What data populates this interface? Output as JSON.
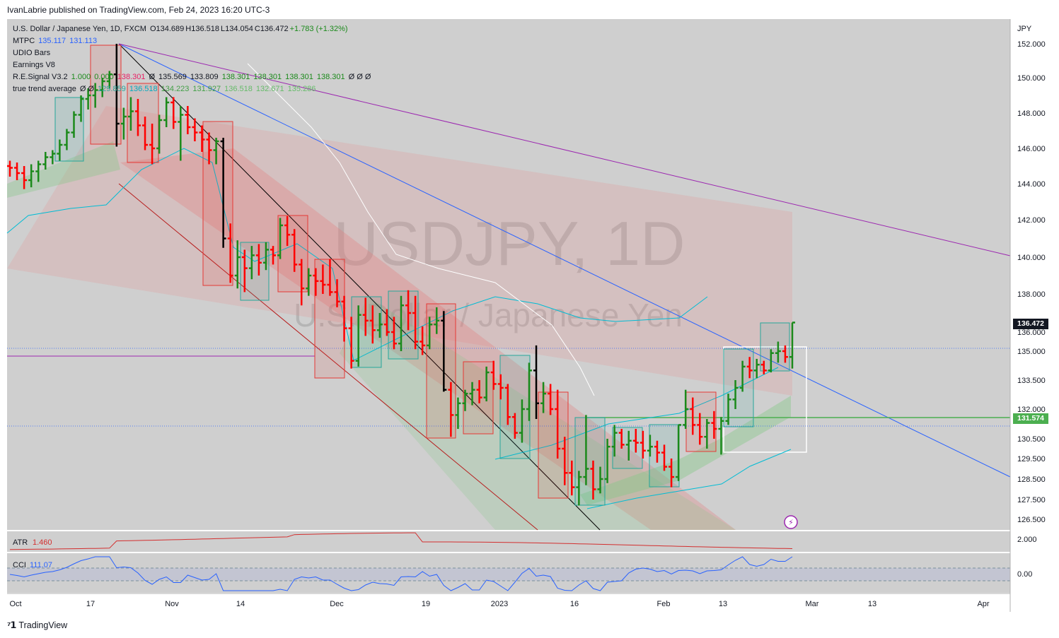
{
  "header": {
    "published": "IvanLabrie published on TradingView.com, Feb 24, 2023 16:20 UTC-3"
  },
  "watermark": {
    "symbol": "USDJPY, 1D",
    "name": "U.S. Dollar / Japanese Yen"
  },
  "legend": {
    "line1": {
      "title": "U.S. Dollar / Japanese Yen, 1D, FXCM",
      "o": "O134.689",
      "h": "H136.518",
      "l": "L134.054",
      "c": "C136.472",
      "chg": "+1.783 (+1.32%)"
    },
    "line2": {
      "name": "MTPC",
      "v1": "135.117",
      "v2": "131.113"
    },
    "line3": {
      "name": "UDIO Bars"
    },
    "line4": {
      "name": "Earnings V8"
    },
    "line5": {
      "name": "R.E.Signal V3.2",
      "v1": "1.000",
      "v2": "0.000",
      "v3": "138.301",
      "v4": "Ø",
      "v5": "135.569",
      "v6": "133.809",
      "v7": "138.301",
      "v8": "138.301",
      "v9": "138.301",
      "v10": "138.301",
      "v11": "Ø Ø Ø"
    },
    "line6": {
      "name": "true trend average",
      "v1": "Ø Ø",
      "v2": "129.859",
      "v3": "136.518",
      "v4": "134.223",
      "v5": "131.927",
      "v6": "136.518",
      "v7": "132.671",
      "v8": "135.286"
    }
  },
  "price_axis": {
    "currency": "JPY",
    "last_price": "136.472",
    "hline_price": "131.574",
    "colors": {
      "last": "#131722",
      "hline": "#4caf50"
    }
  },
  "atr": {
    "label": "ATR",
    "value": "1.460",
    "axis_label": "2.000"
  },
  "cci": {
    "label": "CCI",
    "value": "111.07",
    "axis_label": "0.00"
  },
  "footer": {
    "brand": "TradingView"
  },
  "chart_data": {
    "type": "candlestick",
    "symbol": "USDJPY",
    "interval": "1D",
    "ylim": [
      125.6,
      153.0
    ],
    "y_ticks": [
      126.5,
      127.5,
      128.5,
      129.5,
      130.5,
      132.0,
      133.5,
      135.0,
      136.0,
      138.0,
      140.0,
      142.0,
      144.0,
      146.0,
      148.0,
      150.0,
      152.0
    ],
    "y_tick_labels": [
      "126.500",
      "127.500",
      "128.500",
      "129.500",
      "130.500",
      "132.000",
      "133.500",
      "135.000",
      "136.000",
      "138.000",
      "140.000",
      "142.000",
      "144.000",
      "146.000",
      "148.000",
      "150.000",
      "152.000"
    ],
    "x_tick_labels": [
      "Oct",
      "17",
      "Nov",
      "14",
      "Dec",
      "19",
      "2023",
      "16",
      "Feb",
      "13",
      "Mar",
      "13",
      "Apr"
    ],
    "colors": {
      "up": "#1b8a1b",
      "down": "#ff0000",
      "neutral": "#000000",
      "bands": "#f08080",
      "channel_green": "#4caf50"
    },
    "bars": [
      {
        "o": 145.0,
        "h": 145.3,
        "l": 144.4,
        "c": 144.9
      },
      {
        "o": 144.9,
        "h": 145.2,
        "l": 144.2,
        "c": 144.6
      },
      {
        "o": 144.6,
        "h": 145.0,
        "l": 143.7,
        "c": 144.2
      },
      {
        "o": 144.2,
        "h": 145.1,
        "l": 143.8,
        "c": 144.7
      },
      {
        "o": 144.7,
        "h": 145.3,
        "l": 144.1,
        "c": 145.1
      },
      {
        "o": 145.1,
        "h": 145.8,
        "l": 144.8,
        "c": 145.5
      },
      {
        "o": 145.5,
        "h": 145.9,
        "l": 145.1,
        "c": 145.7
      },
      {
        "o": 145.7,
        "h": 146.5,
        "l": 145.3,
        "c": 146.2
      },
      {
        "o": 146.2,
        "h": 147.1,
        "l": 145.9,
        "c": 146.9
      },
      {
        "o": 146.9,
        "h": 148.1,
        "l": 146.6,
        "c": 147.9
      },
      {
        "o": 147.9,
        "h": 149.0,
        "l": 147.5,
        "c": 148.8
      },
      {
        "o": 148.8,
        "h": 149.4,
        "l": 148.2,
        "c": 149.0
      },
      {
        "o": 149.0,
        "h": 149.7,
        "l": 148.3,
        "c": 149.3
      },
      {
        "o": 149.3,
        "h": 150.0,
        "l": 148.9,
        "c": 149.8
      },
      {
        "o": 149.8,
        "h": 150.4,
        "l": 149.4,
        "c": 150.2
      },
      {
        "o": 150.2,
        "h": 152.0,
        "l": 146.1,
        "c": 147.4
      },
      {
        "o": 147.4,
        "h": 148.3,
        "l": 146.5,
        "c": 147.8
      },
      {
        "o": 147.8,
        "h": 148.9,
        "l": 147.0,
        "c": 148.1
      },
      {
        "o": 148.1,
        "h": 148.8,
        "l": 146.7,
        "c": 147.3
      },
      {
        "o": 147.3,
        "h": 147.8,
        "l": 145.9,
        "c": 146.2
      },
      {
        "o": 146.2,
        "h": 147.4,
        "l": 145.1,
        "c": 146.0
      },
      {
        "o": 146.0,
        "h": 147.9,
        "l": 145.7,
        "c": 147.6
      },
      {
        "o": 147.6,
        "h": 148.9,
        "l": 147.2,
        "c": 148.6
      },
      {
        "o": 148.6,
        "h": 148.9,
        "l": 147.1,
        "c": 147.5
      },
      {
        "o": 147.5,
        "h": 148.4,
        "l": 145.3,
        "c": 147.9
      },
      {
        "o": 147.9,
        "h": 148.4,
        "l": 146.8,
        "c": 147.2
      },
      {
        "o": 147.2,
        "h": 147.7,
        "l": 146.4,
        "c": 146.9
      },
      {
        "o": 146.9,
        "h": 147.3,
        "l": 145.8,
        "c": 146.5
      },
      {
        "o": 146.5,
        "h": 146.9,
        "l": 145.1,
        "c": 145.9
      },
      {
        "o": 145.9,
        "h": 146.6,
        "l": 145.1,
        "c": 146.4
      },
      {
        "o": 146.4,
        "h": 146.6,
        "l": 140.5,
        "c": 141.0
      },
      {
        "o": 141.0,
        "h": 141.8,
        "l": 138.6,
        "c": 139.0
      },
      {
        "o": 139.0,
        "h": 140.9,
        "l": 138.3,
        "c": 140.0
      },
      {
        "o": 140.0,
        "h": 140.4,
        "l": 138.1,
        "c": 139.4
      },
      {
        "o": 139.4,
        "h": 140.6,
        "l": 138.8,
        "c": 140.1
      },
      {
        "o": 140.1,
        "h": 140.7,
        "l": 139.0,
        "c": 139.7
      },
      {
        "o": 139.7,
        "h": 140.8,
        "l": 139.3,
        "c": 140.4
      },
      {
        "o": 140.4,
        "h": 140.6,
        "l": 139.6,
        "c": 140.1
      },
      {
        "o": 140.1,
        "h": 142.1,
        "l": 139.9,
        "c": 141.7
      },
      {
        "o": 141.7,
        "h": 142.2,
        "l": 140.6,
        "c": 141.2
      },
      {
        "o": 141.2,
        "h": 141.5,
        "l": 139.2,
        "c": 139.6
      },
      {
        "o": 139.6,
        "h": 139.9,
        "l": 137.4,
        "c": 138.3
      },
      {
        "o": 138.3,
        "h": 139.4,
        "l": 137.9,
        "c": 139.0
      },
      {
        "o": 139.0,
        "h": 139.4,
        "l": 137.9,
        "c": 138.7
      },
      {
        "o": 138.7,
        "h": 139.6,
        "l": 138.0,
        "c": 138.5
      },
      {
        "o": 138.5,
        "h": 139.9,
        "l": 137.9,
        "c": 138.1
      },
      {
        "o": 138.1,
        "h": 138.8,
        "l": 137.3,
        "c": 137.6
      },
      {
        "o": 137.6,
        "h": 137.9,
        "l": 135.5,
        "c": 136.2
      },
      {
        "o": 136.2,
        "h": 136.8,
        "l": 134.1,
        "c": 134.5
      },
      {
        "o": 134.5,
        "h": 137.4,
        "l": 134.2,
        "c": 136.9
      },
      {
        "o": 136.9,
        "h": 137.8,
        "l": 135.8,
        "c": 136.6
      },
      {
        "o": 136.6,
        "h": 137.4,
        "l": 135.4,
        "c": 136.1
      },
      {
        "o": 136.1,
        "h": 137.0,
        "l": 135.7,
        "c": 136.4
      },
      {
        "o": 136.4,
        "h": 137.2,
        "l": 135.8,
        "c": 136.0
      },
      {
        "o": 136.0,
        "h": 136.8,
        "l": 135.1,
        "c": 135.4
      },
      {
        "o": 135.4,
        "h": 137.9,
        "l": 135.0,
        "c": 137.4
      },
      {
        "o": 137.4,
        "h": 138.2,
        "l": 136.1,
        "c": 137.0
      },
      {
        "o": 137.0,
        "h": 137.9,
        "l": 135.1,
        "c": 135.5
      },
      {
        "o": 135.5,
        "h": 136.3,
        "l": 134.8,
        "c": 135.3
      },
      {
        "o": 135.3,
        "h": 136.8,
        "l": 135.1,
        "c": 136.4
      },
      {
        "o": 136.4,
        "h": 137.3,
        "l": 135.9,
        "c": 136.6
      },
      {
        "o": 136.6,
        "h": 137.1,
        "l": 132.9,
        "c": 133.0
      },
      {
        "o": 133.0,
        "h": 133.4,
        "l": 130.6,
        "c": 131.7
      },
      {
        "o": 131.7,
        "h": 132.6,
        "l": 131.0,
        "c": 132.3
      },
      {
        "o": 132.3,
        "h": 133.0,
        "l": 131.9,
        "c": 132.8
      },
      {
        "o": 132.8,
        "h": 133.4,
        "l": 132.2,
        "c": 133.0
      },
      {
        "o": 133.0,
        "h": 133.5,
        "l": 132.3,
        "c": 132.6
      },
      {
        "o": 132.6,
        "h": 134.2,
        "l": 132.4,
        "c": 133.9
      },
      {
        "o": 133.9,
        "h": 134.5,
        "l": 133.0,
        "c": 133.3
      },
      {
        "o": 133.3,
        "h": 133.8,
        "l": 132.5,
        "c": 133.1
      },
      {
        "o": 133.1,
        "h": 133.3,
        "l": 131.2,
        "c": 131.6
      },
      {
        "o": 131.6,
        "h": 131.8,
        "l": 130.5,
        "c": 130.8
      },
      {
        "o": 130.8,
        "h": 132.5,
        "l": 130.3,
        "c": 132.0
      },
      {
        "o": 132.0,
        "h": 134.4,
        "l": 131.4,
        "c": 134.0
      },
      {
        "o": 134.0,
        "h": 135.3,
        "l": 131.5,
        "c": 132.3
      },
      {
        "o": 132.3,
        "h": 133.4,
        "l": 131.8,
        "c": 132.8
      },
      {
        "o": 132.8,
        "h": 133.3,
        "l": 131.7,
        "c": 132.0
      },
      {
        "o": 132.0,
        "h": 133.0,
        "l": 129.5,
        "c": 130.0
      },
      {
        "o": 130.0,
        "h": 130.6,
        "l": 128.2,
        "c": 128.8
      },
      {
        "o": 128.8,
        "h": 129.4,
        "l": 127.7,
        "c": 128.1
      },
      {
        "o": 128.1,
        "h": 128.9,
        "l": 127.2,
        "c": 128.6
      },
      {
        "o": 128.6,
        "h": 131.7,
        "l": 128.2,
        "c": 129.0
      },
      {
        "o": 129.0,
        "h": 129.4,
        "l": 127.5,
        "c": 128.0
      },
      {
        "o": 128.0,
        "h": 129.1,
        "l": 127.8,
        "c": 128.5
      },
      {
        "o": 128.5,
        "h": 130.5,
        "l": 128.3,
        "c": 130.1
      },
      {
        "o": 130.1,
        "h": 131.2,
        "l": 129.6,
        "c": 130.8
      },
      {
        "o": 130.8,
        "h": 131.0,
        "l": 130.0,
        "c": 130.2
      },
      {
        "o": 130.2,
        "h": 130.9,
        "l": 129.4,
        "c": 130.4
      },
      {
        "o": 130.4,
        "h": 131.0,
        "l": 129.8,
        "c": 130.3
      },
      {
        "o": 130.3,
        "h": 130.9,
        "l": 129.5,
        "c": 129.9
      },
      {
        "o": 129.9,
        "h": 130.7,
        "l": 129.6,
        "c": 130.1
      },
      {
        "o": 130.1,
        "h": 130.4,
        "l": 129.3,
        "c": 129.8
      },
      {
        "o": 129.8,
        "h": 130.2,
        "l": 128.9,
        "c": 129.1
      },
      {
        "o": 129.1,
        "h": 129.5,
        "l": 128.1,
        "c": 128.6
      },
      {
        "o": 128.6,
        "h": 131.2,
        "l": 128.4,
        "c": 131.2
      },
      {
        "o": 131.2,
        "h": 133.0,
        "l": 131.0,
        "c": 132.0
      },
      {
        "o": 132.0,
        "h": 132.6,
        "l": 130.7,
        "c": 131.2
      },
      {
        "o": 131.2,
        "h": 131.8,
        "l": 130.2,
        "c": 130.6
      },
      {
        "o": 130.6,
        "h": 131.5,
        "l": 130.0,
        "c": 131.3
      },
      {
        "o": 131.3,
        "h": 131.9,
        "l": 130.5,
        "c": 131.0
      },
      {
        "o": 131.0,
        "h": 131.6,
        "l": 129.7,
        "c": 131.4
      },
      {
        "o": 131.4,
        "h": 132.8,
        "l": 131.2,
        "c": 132.5
      },
      {
        "o": 132.5,
        "h": 133.5,
        "l": 132.0,
        "c": 133.1
      },
      {
        "o": 133.1,
        "h": 134.5,
        "l": 132.9,
        "c": 134.2
      },
      {
        "o": 134.2,
        "h": 134.7,
        "l": 133.6,
        "c": 134.0
      },
      {
        "o": 134.0,
        "h": 134.6,
        "l": 133.6,
        "c": 134.3
      },
      {
        "o": 134.3,
        "h": 134.5,
        "l": 133.8,
        "c": 134.0
      },
      {
        "o": 134.0,
        "h": 135.1,
        "l": 133.9,
        "c": 134.9
      },
      {
        "o": 134.9,
        "h": 135.5,
        "l": 134.4,
        "c": 135.0
      },
      {
        "o": 135.0,
        "h": 135.3,
        "l": 134.4,
        "c": 134.7
      },
      {
        "o": 134.7,
        "h": 136.5,
        "l": 134.1,
        "c": 136.5
      }
    ]
  }
}
